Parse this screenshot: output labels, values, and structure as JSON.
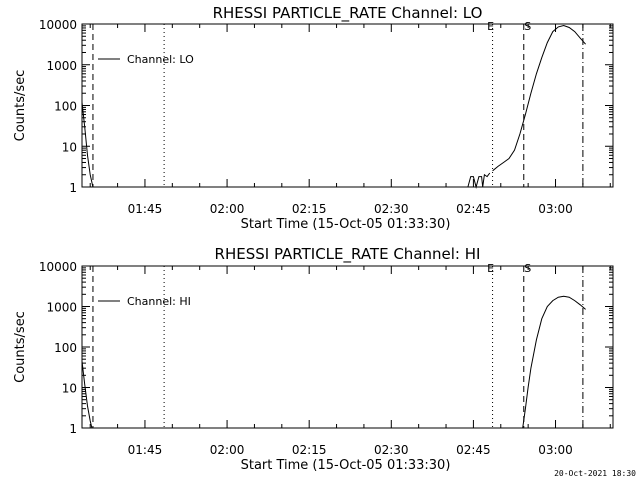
{
  "timestamp": "20-Oct-2021 18:30",
  "chart_data": [
    {
      "type": "line",
      "title": "RHESSI PARTICLE_RATE Channel: LO",
      "xlabel": "Start Time (15-Oct-05 01:33:30)",
      "ylabel": "Counts/sec",
      "yscale": "log",
      "ylim": [
        1,
        10000
      ],
      "xlim_minutes": [
        0,
        97
      ],
      "x_tick_labels": [
        "01:45",
        "02:00",
        "02:15",
        "02:30",
        "02:45",
        "03:00"
      ],
      "x_tick_minutes": [
        11.5,
        26.5,
        41.5,
        56.5,
        71.5,
        86.5
      ],
      "y_tick_labels": [
        "1",
        "10",
        "100",
        "1000",
        "10000"
      ],
      "y_tick_values": [
        1,
        10,
        100,
        1000,
        10000
      ],
      "legend": "Channel: LO",
      "legend_position": "top-left",
      "vlines": [
        {
          "x": 2.0,
          "style": "dashed"
        },
        {
          "x": 15.0,
          "style": "dotted"
        },
        {
          "x": 75.0,
          "style": "dotted",
          "label": "E"
        },
        {
          "x": 80.7,
          "style": "dashed",
          "label": "S"
        },
        {
          "x": 91.5,
          "style": "dashdot"
        }
      ],
      "series": [
        {
          "x": [
            0,
            0.5,
            1.0,
            1.5,
            2.0
          ],
          "y": [
            120,
            30,
            6,
            2,
            1
          ]
        },
        {
          "x": [
            70.5,
            71.0,
            71.5,
            72.0,
            72.5,
            73.0,
            73.2,
            73.5,
            74.0,
            74.5
          ],
          "y": [
            1,
            1.8,
            1.8,
            1,
            1.8,
            1.8,
            1,
            2.0,
            1.8,
            2.2
          ]
        },
        {
          "x": [
            75.0,
            76.0,
            77.0,
            78.0,
            79.0,
            80.0,
            81.0,
            82.0,
            83.0,
            84.0,
            85.0,
            86.0,
            87.0,
            88.0,
            89.0,
            90.0,
            91.0,
            92.0
          ],
          "y": [
            2.5,
            3.2,
            4.0,
            5.0,
            8,
            20,
            60,
            200,
            600,
            1500,
            3500,
            6500,
            8500,
            9200,
            8200,
            6500,
            4500,
            3200
          ]
        }
      ]
    },
    {
      "type": "line",
      "title": "RHESSI PARTICLE_RATE Channel: HI",
      "xlabel": "Start Time (15-Oct-05 01:33:30)",
      "ylabel": "Counts/sec",
      "yscale": "log",
      "ylim": [
        1,
        10000
      ],
      "xlim_minutes": [
        0,
        97
      ],
      "x_tick_labels": [
        "01:45",
        "02:00",
        "02:15",
        "02:30",
        "02:45",
        "03:00"
      ],
      "x_tick_minutes": [
        11.5,
        26.5,
        41.5,
        56.5,
        71.5,
        86.5
      ],
      "y_tick_labels": [
        "1",
        "10",
        "100",
        "1000",
        "10000"
      ],
      "y_tick_values": [
        1,
        10,
        100,
        1000,
        10000
      ],
      "legend": "Channel: HI",
      "legend_position": "top-left",
      "vlines": [
        {
          "x": 2.0,
          "style": "dashed"
        },
        {
          "x": 15.0,
          "style": "dotted"
        },
        {
          "x": 75.0,
          "style": "dotted",
          "label": "E"
        },
        {
          "x": 80.7,
          "style": "dashed",
          "label": "S"
        },
        {
          "x": 91.5,
          "style": "dashdot"
        }
      ],
      "series": [
        {
          "x": [
            0,
            0.5,
            1.0,
            1.5,
            1.8
          ],
          "y": [
            45,
            12,
            3.5,
            1.5,
            1
          ]
        },
        {
          "x": [
            80.5,
            81.0,
            81.5,
            82.0,
            83.0,
            84.0,
            85.0,
            86.0,
            87.0,
            88.0,
            89.0,
            90.0,
            91.0,
            92.0
          ],
          "y": [
            1,
            3,
            10,
            30,
            150,
            500,
            1000,
            1400,
            1700,
            1800,
            1700,
            1400,
            1100,
            850
          ]
        }
      ]
    }
  ]
}
